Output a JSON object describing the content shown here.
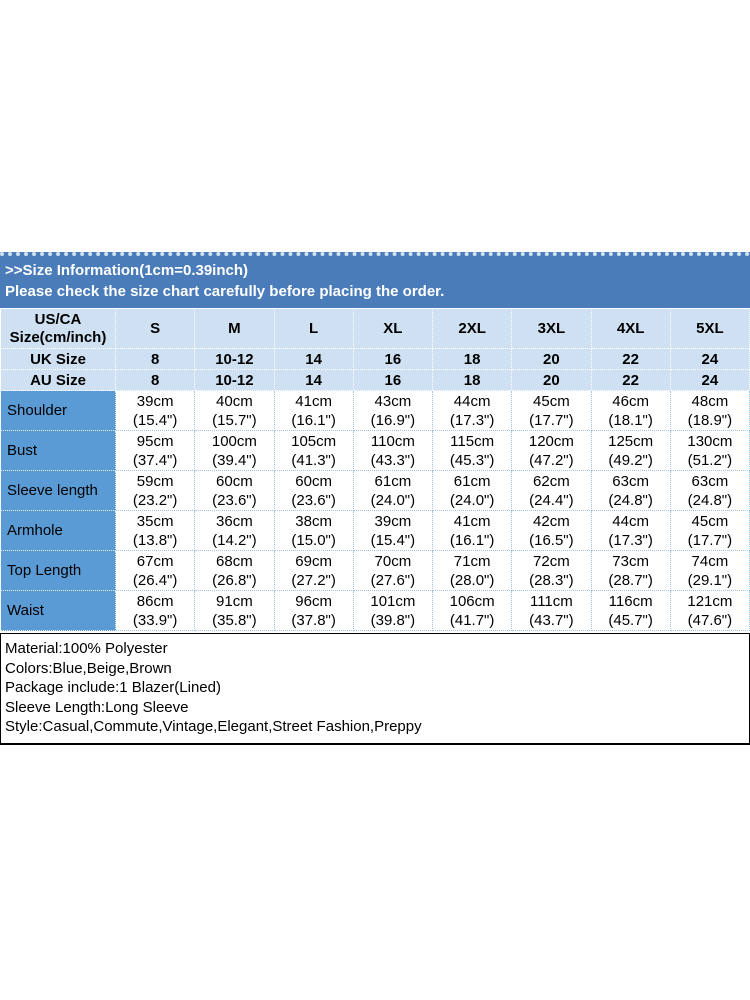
{
  "colors": {
    "banner_blue": "#4a7cba",
    "header_light_blue": "#cee0f2",
    "label_blue": "#5b9bd5",
    "grid_light_blue": "#9dc3e6",
    "banner_text": "#ffffff",
    "body_text": "#000000"
  },
  "size_banner": {
    "line1": ">>Size Information(1cm=0.39inch)",
    "line2": "Please check the size chart carefully before placing the order."
  },
  "size_table": {
    "corner": {
      "line1": "US/CA",
      "line2": "Size(cm/inch)"
    },
    "size_columns": [
      "S",
      "M",
      "L",
      "XL",
      "2XL",
      "3XL",
      "4XL",
      "5XL"
    ],
    "region_rows": [
      {
        "label": "UK Size",
        "values": [
          "8",
          "10-12",
          "14",
          "16",
          "18",
          "20",
          "22",
          "24"
        ]
      },
      {
        "label": "AU Size",
        "values": [
          "8",
          "10-12",
          "14",
          "16",
          "18",
          "20",
          "22",
          "24"
        ]
      }
    ],
    "measurement_rows": [
      {
        "label": "Shoulder",
        "values": [
          [
            "39cm",
            "(15.4\")"
          ],
          [
            "40cm",
            "(15.7\")"
          ],
          [
            "41cm",
            "(16.1\")"
          ],
          [
            "43cm",
            "(16.9\")"
          ],
          [
            "44cm",
            "(17.3\")"
          ],
          [
            "45cm",
            "(17.7\")"
          ],
          [
            "46cm",
            "(18.1\")"
          ],
          [
            "48cm",
            "(18.9\")"
          ]
        ]
      },
      {
        "label": "Bust",
        "values": [
          [
            "95cm",
            "(37.4\")"
          ],
          [
            "100cm",
            "(39.4\")"
          ],
          [
            "105cm",
            "(41.3\")"
          ],
          [
            "110cm",
            "(43.3\")"
          ],
          [
            "115cm",
            "(45.3\")"
          ],
          [
            "120cm",
            "(47.2\")"
          ],
          [
            "125cm",
            "(49.2\")"
          ],
          [
            "130cm",
            "(51.2\")"
          ]
        ]
      },
      {
        "label": "Sleeve length",
        "values": [
          [
            "59cm",
            "(23.2\")"
          ],
          [
            "60cm",
            "(23.6\")"
          ],
          [
            "60cm",
            "(23.6\")"
          ],
          [
            "61cm",
            "(24.0\")"
          ],
          [
            "61cm",
            "(24.0\")"
          ],
          [
            "62cm",
            "(24.4\")"
          ],
          [
            "63cm",
            "(24.8\")"
          ],
          [
            "63cm",
            "(24.8\")"
          ]
        ]
      },
      {
        "label": "Armhole",
        "values": [
          [
            "35cm",
            "(13.8\")"
          ],
          [
            "36cm",
            "(14.2\")"
          ],
          [
            "38cm",
            "(15.0\")"
          ],
          [
            "39cm",
            "(15.4\")"
          ],
          [
            "41cm",
            "(16.1\")"
          ],
          [
            "42cm",
            "(16.5\")"
          ],
          [
            "44cm",
            "(17.3\")"
          ],
          [
            "45cm",
            "(17.7\")"
          ]
        ]
      },
      {
        "label": "Top Length",
        "values": [
          [
            "67cm",
            "(26.4\")"
          ],
          [
            "68cm",
            "(26.8\")"
          ],
          [
            "69cm",
            "(27.2\")"
          ],
          [
            "70cm",
            "(27.6\")"
          ],
          [
            "71cm",
            "(28.0\")"
          ],
          [
            "72cm",
            "(28.3\")"
          ],
          [
            "73cm",
            "(28.7\")"
          ],
          [
            "74cm",
            "(29.1\")"
          ]
        ]
      },
      {
        "label": "Waist",
        "values": [
          [
            "86cm",
            "(33.9\")"
          ],
          [
            "91cm",
            "(35.8\")"
          ],
          [
            "96cm",
            "(37.8\")"
          ],
          [
            "101cm",
            "(39.8\")"
          ],
          [
            "106cm",
            "(41.7\")"
          ],
          [
            "111cm",
            "(43.7\")"
          ],
          [
            "116cm",
            "(45.7\")"
          ],
          [
            "121cm",
            "(47.6\")"
          ]
        ]
      }
    ]
  },
  "product_info": {
    "lines": [
      "Material:100% Polyester",
      "Colors:Blue,Beige,Brown",
      "Package include:1 Blazer(Lined)",
      "Sleeve Length:Long Sleeve",
      "Style:Casual,Commute,Vintage,Elegant,Street Fashion,Preppy"
    ]
  }
}
